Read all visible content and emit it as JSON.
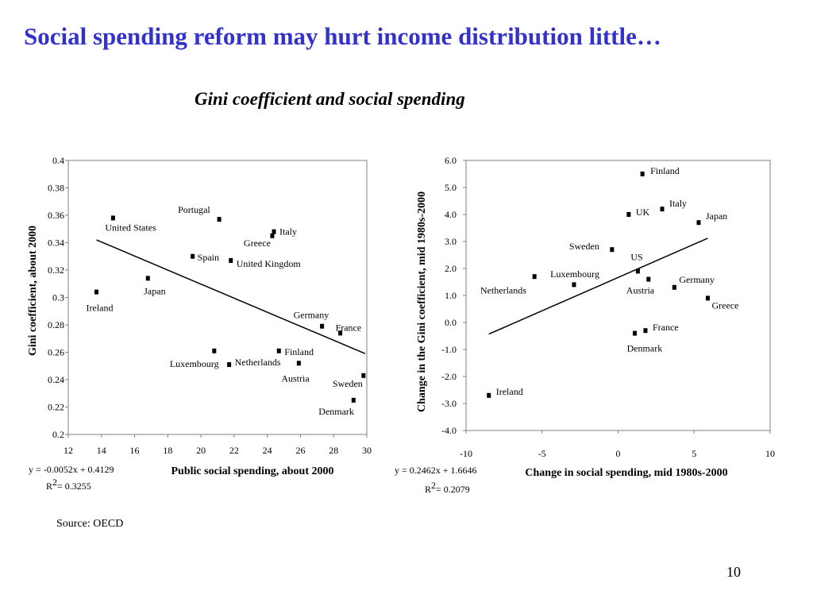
{
  "slide": {
    "title": "Social spending reform may hurt income distribution little…",
    "subtitle": "Gini coefficient and social spending",
    "source": "Source: OECD",
    "page_number": "10"
  },
  "colors": {
    "title": "#3333cc",
    "marks": "#000000"
  },
  "chart_data": [
    {
      "type": "scatter",
      "xlabel": "Public social spending, about 2000",
      "ylabel": "Gini coefficient, about 2000",
      "xlim": [
        12,
        30
      ],
      "ylim": [
        0.2,
        0.4
      ],
      "xticks": [
        "12",
        "14",
        "16",
        "18",
        "20",
        "22",
        "24",
        "26",
        "28",
        "30"
      ],
      "yticks": [
        "0.2",
        "0.22",
        "0.24",
        "0.26",
        "0.28",
        "0.3",
        "0.32",
        "0.34",
        "0.36",
        "0.38",
        "0.4"
      ],
      "grid": false,
      "points": [
        {
          "label": "United States",
          "x": 14.7,
          "y": 0.358
        },
        {
          "label": "Portugal",
          "x": 21.1,
          "y": 0.357
        },
        {
          "label": "Greece",
          "x": 24.3,
          "y": 0.345
        },
        {
          "label": "Italy",
          "x": 24.4,
          "y": 0.348
        },
        {
          "label": "Spain",
          "x": 19.5,
          "y": 0.33
        },
        {
          "label": "United Kingdom",
          "x": 21.8,
          "y": 0.327
        },
        {
          "label": "Japan",
          "x": 16.8,
          "y": 0.314
        },
        {
          "label": "Ireland",
          "x": 13.7,
          "y": 0.304
        },
        {
          "label": "Germany",
          "x": 27.3,
          "y": 0.279
        },
        {
          "label": "France",
          "x": 28.4,
          "y": 0.274
        },
        {
          "label": "Luxembourg",
          "x": 20.8,
          "y": 0.261
        },
        {
          "label": "Netherlands",
          "x": 21.7,
          "y": 0.251
        },
        {
          "label": "Finland",
          "x": 24.7,
          "y": 0.261
        },
        {
          "label": "Austria",
          "x": 25.9,
          "y": 0.252
        },
        {
          "label": "Sweden",
          "x": 29.8,
          "y": 0.243
        },
        {
          "label": "Denmark",
          "x": 29.2,
          "y": 0.225
        }
      ],
      "trendline": {
        "x": [
          13.7,
          29.9
        ],
        "y": [
          0.342,
          0.259
        ]
      },
      "equation": "y = -0.0052x + 0.4129",
      "r2_label": "R",
      "r2_exp": "2",
      "r2_value": "= 0.3255"
    },
    {
      "type": "scatter",
      "xlabel": "Change in social spending, mid 1980s-2000",
      "ylabel": "Change in the Gini coefficient, mid 1980s-2000",
      "xlim": [
        -10,
        10
      ],
      "ylim": [
        -4.0,
        6.0
      ],
      "xticks": [
        "-10",
        "-5",
        "0",
        "5",
        "10"
      ],
      "yticks": [
        "-4.0",
        "-3.0",
        "-2.0",
        "-1.0",
        "0.0",
        "1.0",
        "2.0",
        "3.0",
        "4.0",
        "5.0",
        "6.0"
      ],
      "grid": false,
      "points": [
        {
          "label": "Finland",
          "x": 1.6,
          "y": 5.5
        },
        {
          "label": "UK",
          "x": 0.7,
          "y": 4.0
        },
        {
          "label": "Italy",
          "x": 2.9,
          "y": 4.2
        },
        {
          "label": "Japan",
          "x": 5.3,
          "y": 3.7
        },
        {
          "label": "Sweden",
          "x": -0.4,
          "y": 2.7
        },
        {
          "label": "US",
          "x": 1.3,
          "y": 1.9
        },
        {
          "label": "Luxembourg",
          "x": -5.5,
          "y": 1.7
        },
        {
          "label": "Netherlands",
          "x": -2.9,
          "y": 1.4
        },
        {
          "label": "Austria",
          "x": 2.0,
          "y": 1.6
        },
        {
          "label": "Germany",
          "x": 3.7,
          "y": 1.3
        },
        {
          "label": "Greece",
          "x": 5.9,
          "y": 0.9
        },
        {
          "label": "France",
          "x": 1.8,
          "y": -0.3
        },
        {
          "label": "Denmark",
          "x": 1.1,
          "y": -0.4
        },
        {
          "label": "Ireland",
          "x": -8.5,
          "y": -2.7
        }
      ],
      "trendline": {
        "x": [
          -8.5,
          5.9
        ],
        "y": [
          -0.43,
          3.12
        ]
      },
      "equation": "y = 0.2462x + 1.6646",
      "r2_label": "R",
      "r2_exp": "2",
      "r2_value": "= 0.2079"
    }
  ]
}
